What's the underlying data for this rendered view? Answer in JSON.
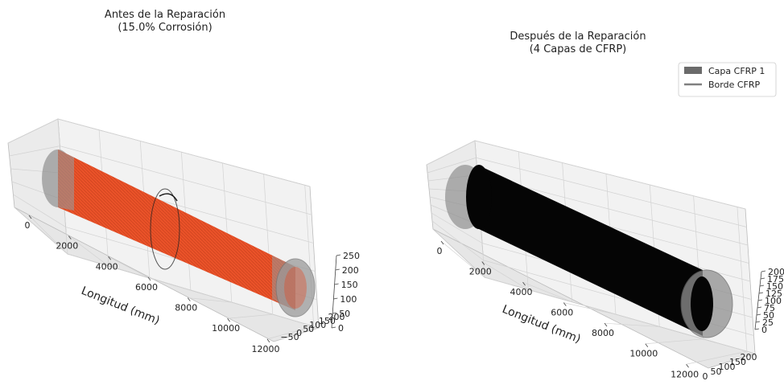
{
  "chart_data": [
    {
      "type": "3d-surface",
      "title_line1": "Antes de la Reparación",
      "title_line2": "(15.0% Corrosión)",
      "xlabel": "Longitud (mm)",
      "xticks": [
        "0",
        "2000",
        "4000",
        "6000",
        "8000",
        "10000",
        "12000"
      ],
      "xlim": [
        0,
        12000
      ],
      "yticks": [
        "−50",
        "0",
        "50",
        "100",
        "150",
        "200"
      ],
      "zticks": [
        "0",
        "50",
        "100",
        "150",
        "200",
        "250"
      ],
      "colors": {
        "pipe": "#808080",
        "corrosion": "#e8431a",
        "ring": "#222222"
      }
    },
    {
      "type": "3d-surface",
      "title_line1": "Después de la Reparación",
      "title_line2": "(4 Capas de CFRP)",
      "xlabel": "Longitud (mm)",
      "xticks": [
        "0",
        "2000",
        "4000",
        "6000",
        "8000",
        "10000",
        "12000"
      ],
      "xlim": [
        0,
        12000
      ],
      "yticks": [
        "0",
        "50",
        "100",
        "150",
        "200"
      ],
      "zticks": [
        "0",
        "25",
        "50",
        "75",
        "100",
        "125",
        "150",
        "175",
        "200"
      ],
      "legend": [
        {
          "name": "Capa CFRP 1",
          "kind": "patch",
          "color": "#6b6b6b"
        },
        {
          "name": "Borde CFRP",
          "kind": "line",
          "color": "#808080"
        }
      ],
      "legend_position": "top-right",
      "colors": {
        "pipe": "#808080",
        "cfrp": "#050505"
      }
    }
  ]
}
